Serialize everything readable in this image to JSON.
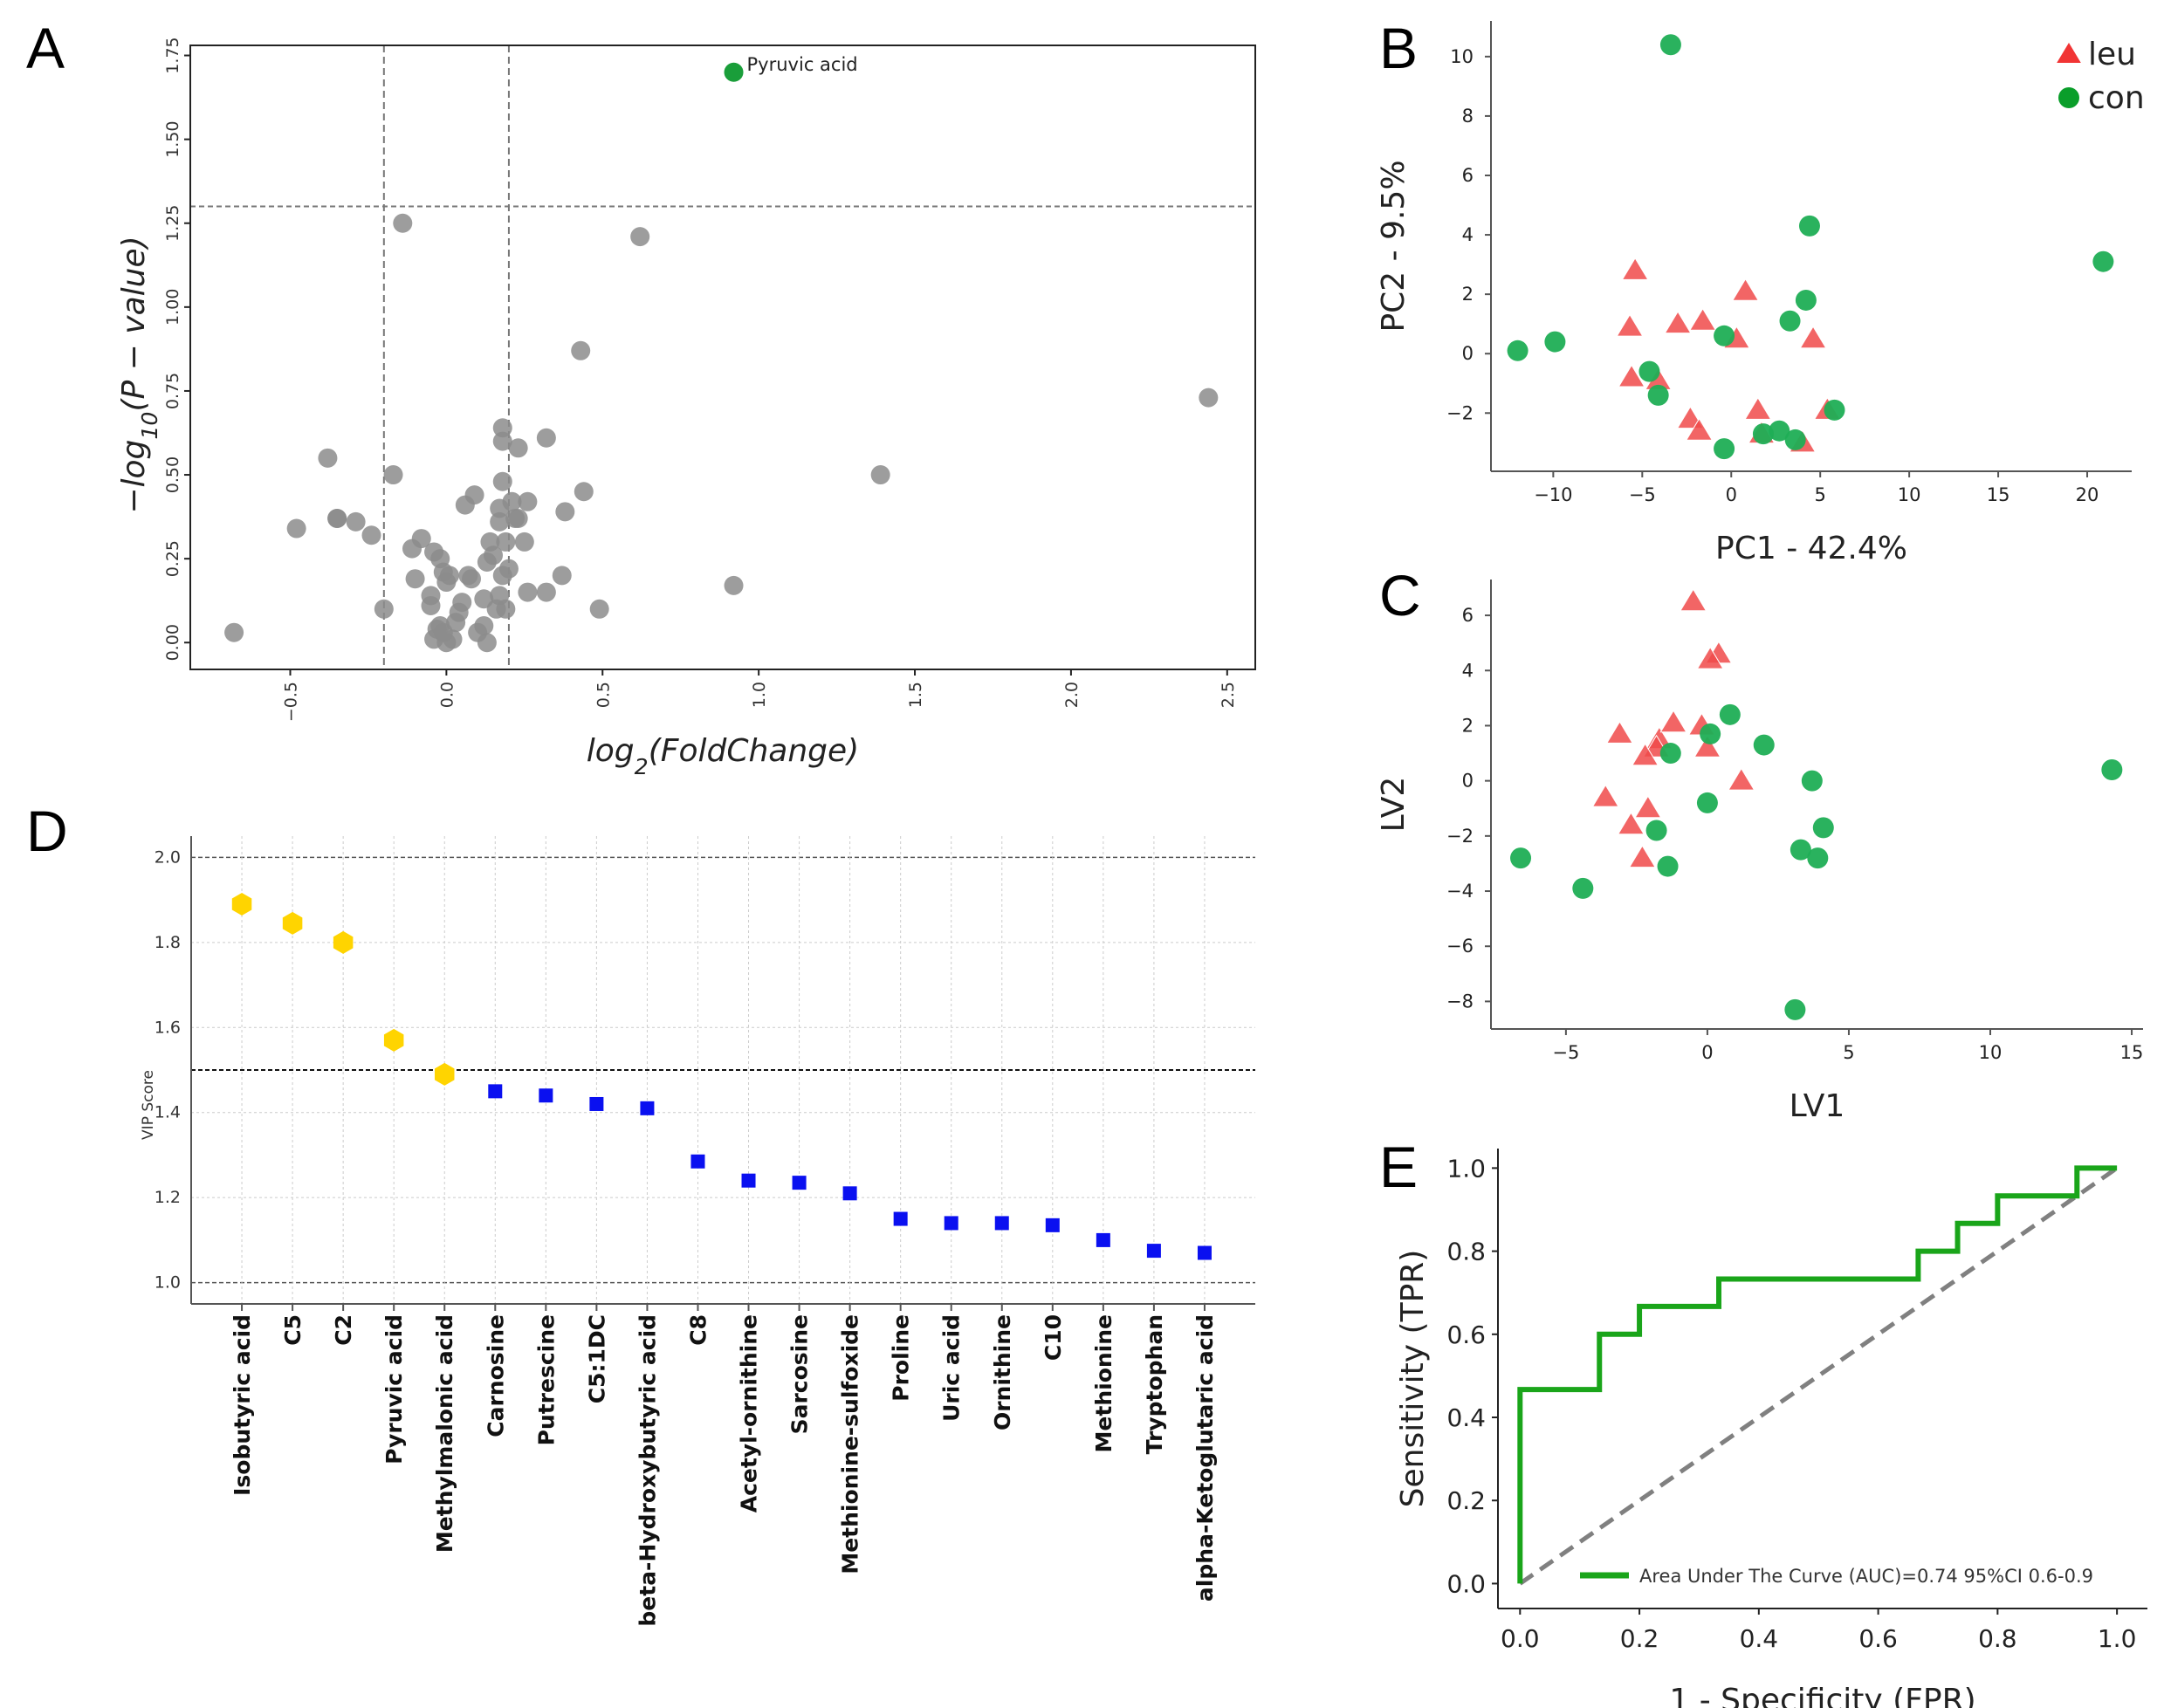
{
  "colors": {
    "gray_point": "#8c8c8c",
    "highlight": "#1a9e3a",
    "leu": "#f04a4a",
    "con": "#1fae55",
    "vip_high": "#ffd400",
    "vip_low": "#0a10f0",
    "roc": "#1aa51a",
    "diagonal": "#808080"
  },
  "chart_data": [
    {
      "panel": "A",
      "type": "scatter",
      "xlabel": {
        "main": "log",
        "sub": "2",
        "rest": "(FoldChange)"
      },
      "ylabel": {
        "main": "−log",
        "sub": "10",
        "rest": "(P − value)"
      },
      "xlim": [
        -0.82,
        2.59
      ],
      "ylim": [
        -0.08,
        1.78
      ],
      "xticks": [
        -0.5,
        0.0,
        0.5,
        1.0,
        1.5,
        2.0,
        2.5
      ],
      "xtick_labels": [
        "−0.5",
        "0.0",
        "0.5",
        "1.0",
        "1.5",
        "2.0",
        "2.5"
      ],
      "yticks": [
        0,
        0.25,
        0.5,
        0.75,
        1.0,
        1.25,
        1.5,
        1.75
      ],
      "ytick_labels": [
        "0.00",
        "0.25",
        "0.50",
        "0.75",
        "1.00",
        "1.25",
        "1.50",
        "1.75"
      ],
      "thresholds": {
        "x": [
          -0.2,
          0.2
        ],
        "y": 1.3
      },
      "points": [
        [
          -0.68,
          0.03
        ],
        [
          -0.48,
          0.34
        ],
        [
          -0.38,
          0.55
        ],
        [
          -0.35,
          0.37
        ],
        [
          -0.35,
          0.37
        ],
        [
          -0.29,
          0.36
        ],
        [
          -0.24,
          0.32
        ],
        [
          -0.2,
          0.1
        ],
        [
          -0.17,
          0.5
        ],
        [
          -0.14,
          1.25
        ],
        [
          0.62,
          1.21
        ],
        [
          0.43,
          0.87
        ],
        [
          2.44,
          0.73
        ],
        [
          1.39,
          0.5
        ],
        [
          0.92,
          0.17
        ],
        [
          0.49,
          0.1
        ],
        [
          0.44,
          0.45
        ],
        [
          0.38,
          0.39
        ],
        [
          0.37,
          0.2
        ],
        [
          0.32,
          0.61
        ],
        [
          0.32,
          0.15
        ],
        [
          0.26,
          0.15
        ],
        [
          0.26,
          0.42
        ],
        [
          0.25,
          0.3
        ],
        [
          0.23,
          0.58
        ],
        [
          0.23,
          0.37
        ],
        [
          0.22,
          0.37
        ],
        [
          0.21,
          0.42
        ],
        [
          0.2,
          0.22
        ],
        [
          0.19,
          0.1
        ],
        [
          0.18,
          0.64
        ],
        [
          0.18,
          0.6
        ],
        [
          0.18,
          0.48
        ],
        [
          0.17,
          0.4
        ],
        [
          0.17,
          0.36
        ],
        [
          0.19,
          0.3
        ],
        [
          0.18,
          0.2
        ],
        [
          0.17,
          0.14
        ],
        [
          0.16,
          0.1
        ],
        [
          0.15,
          0.26
        ],
        [
          0.14,
          0.3
        ],
        [
          0.13,
          0.24
        ],
        [
          0.12,
          0.13
        ],
        [
          0.12,
          0.05
        ],
        [
          0.13,
          0.0
        ],
        [
          0.1,
          0.03
        ],
        [
          0.09,
          0.44
        ],
        [
          0.06,
          0.41
        ],
        [
          0.08,
          0.19
        ],
        [
          0.07,
          0.2
        ],
        [
          0.05,
          0.12
        ],
        [
          0.04,
          0.09
        ],
        [
          0.03,
          0.06
        ],
        [
          0.02,
          0.01
        ],
        [
          0.0,
          0.0
        ],
        [
          -0.01,
          0.03
        ],
        [
          -0.02,
          0.05
        ],
        [
          -0.04,
          0.01
        ],
        [
          -0.03,
          0.04
        ],
        [
          -0.05,
          0.14
        ],
        [
          -0.05,
          0.11
        ],
        [
          -0.01,
          0.21
        ],
        [
          0.01,
          0.2
        ],
        [
          -0.02,
          0.25
        ],
        [
          -0.04,
          0.27
        ],
        [
          -0.08,
          0.31
        ],
        [
          -0.1,
          0.19
        ],
        [
          -0.11,
          0.28
        ],
        [
          0.0,
          0.18
        ]
      ],
      "highlight": {
        "label": "Pyruvic acid",
        "x": 0.92,
        "y": 1.7
      }
    },
    {
      "panel": "B",
      "type": "scatter",
      "xlabel": "PC1 - 42.4%",
      "ylabel": "PC2 - 9.5%",
      "xlim": [
        -13.5,
        22.5
      ],
      "ylim": [
        -3.96,
        11.2
      ],
      "xticks": [
        -10,
        -5,
        0,
        5,
        10,
        15,
        20
      ],
      "xtick_labels": [
        "−10",
        "−5",
        "0",
        "5",
        "10",
        "15",
        "20"
      ],
      "yticks": [
        -2,
        0,
        2,
        4,
        6,
        8,
        10
      ],
      "ytick_labels": [
        "−2",
        "0",
        "2",
        "4",
        "6",
        "8",
        "10"
      ],
      "legend": {
        "position": "top-right",
        "entries": [
          {
            "name": "leu",
            "marker": "triangle"
          },
          {
            "name": "con",
            "marker": "circle"
          }
        ]
      },
      "series": [
        {
          "name": "leu",
          "points": [
            [
              -5.4,
              2.8
            ],
            [
              -5.7,
              0.9
            ],
            [
              -3.0,
              1.0
            ],
            [
              -1.6,
              1.1
            ],
            [
              0.8,
              2.1
            ],
            [
              0.3,
              0.5
            ],
            [
              4.6,
              0.5
            ],
            [
              -5.6,
              -0.8
            ],
            [
              -4.1,
              -0.9
            ],
            [
              -2.3,
              -2.2
            ],
            [
              -1.8,
              -2.6
            ],
            [
              1.5,
              -1.9
            ],
            [
              1.7,
              -2.7
            ],
            [
              5.4,
              -1.9
            ],
            [
              4.0,
              -3.0
            ]
          ]
        },
        {
          "name": "con",
          "points": [
            [
              -12,
              0.1
            ],
            [
              -9.9,
              0.4
            ],
            [
              -3.4,
              10.4
            ],
            [
              4.4,
              4.3
            ],
            [
              20.9,
              3.1
            ],
            [
              4.2,
              1.8
            ],
            [
              3.3,
              1.1
            ],
            [
              -0.4,
              0.6
            ],
            [
              -4.6,
              -0.6
            ],
            [
              -4.1,
              -1.4
            ],
            [
              5.8,
              -1.9
            ],
            [
              2.7,
              -2.6
            ],
            [
              1.8,
              -2.7
            ],
            [
              3.6,
              -2.9
            ],
            [
              -0.4,
              -3.2
            ]
          ]
        }
      ]
    },
    {
      "panel": "C",
      "type": "scatter",
      "xlabel": "LV1",
      "ylabel": "LV2",
      "xlim": [
        -7.65,
        15.4
      ],
      "ylim": [
        -9.0,
        7.3
      ],
      "xticks": [
        -5,
        0,
        5,
        10,
        15
      ],
      "xtick_labels": [
        "−5",
        "0",
        "5",
        "10",
        "15"
      ],
      "yticks": [
        -8,
        -6,
        -4,
        -2,
        0,
        2,
        4,
        6
      ],
      "ytick_labels": [
        "−8",
        "−6",
        "−4",
        "−2",
        "0",
        "2",
        "4",
        "6"
      ],
      "series": [
        {
          "name": "leu",
          "points": [
            [
              -0.5,
              6.5
            ],
            [
              0.4,
              4.6
            ],
            [
              0.1,
              4.4
            ],
            [
              -3.1,
              1.7
            ],
            [
              -1.7,
              1.5
            ],
            [
              -1.2,
              2.1
            ],
            [
              -1.8,
              1.2
            ],
            [
              -2.2,
              0.9
            ],
            [
              -0.2,
              2.0
            ],
            [
              0,
              1.2
            ],
            [
              1.2,
              0
            ],
            [
              -3.6,
              -0.6
            ],
            [
              -2.1,
              -1.0
            ],
            [
              -2.7,
              -1.6
            ],
            [
              -2.3,
              -2.8
            ]
          ]
        },
        {
          "name": "con",
          "points": [
            [
              0.8,
              2.4
            ],
            [
              0.1,
              1.7
            ],
            [
              -1.3,
              1.0
            ],
            [
              2.0,
              1.3
            ],
            [
              3.7,
              0
            ],
            [
              14.3,
              0.4
            ],
            [
              0,
              -0.8
            ],
            [
              -1.8,
              -1.8
            ],
            [
              4.1,
              -1.7
            ],
            [
              3.3,
              -2.5
            ],
            [
              3.9,
              -2.8
            ],
            [
              -1.4,
              -3.1
            ],
            [
              -6.6,
              -2.8
            ],
            [
              -4.4,
              -3.9
            ],
            [
              3.1,
              -8.3
            ]
          ]
        }
      ]
    },
    {
      "panel": "D",
      "type": "scatter",
      "ylabel": "VIP Score",
      "ylim": [
        0.95,
        2.05
      ],
      "yticks": [
        1.0,
        1.2,
        1.4,
        1.6,
        1.8,
        2.0
      ],
      "ytick_labels": [
        "1.0",
        "1.2",
        "1.4",
        "1.6",
        "1.8",
        "2.0"
      ],
      "threshold": 1.5,
      "categories": [
        "Isobutyric acid",
        "C5",
        "C2",
        "Pyruvic acid",
        "Methylmalonic acid",
        "Carnosine",
        "Putrescine",
        "C5:1DC",
        "beta-Hydroxybutyric acid",
        "C8",
        "Acetyl-ornithine",
        "Sarcosine",
        "Methionine-sulfoxide",
        "Proline",
        "Uric acid",
        "Ornithine",
        "C10",
        "Methionine",
        "Tryptophan",
        "alpha-Ketoglutaric acid"
      ],
      "values": [
        1.89,
        1.845,
        1.8,
        1.57,
        1.49,
        1.45,
        1.44,
        1.42,
        1.41,
        1.285,
        1.24,
        1.235,
        1.21,
        1.15,
        1.14,
        1.14,
        1.135,
        1.1,
        1.075,
        1.07
      ]
    },
    {
      "panel": "E",
      "type": "line",
      "xlabel": "1 - Specificity (FPR)",
      "ylabel": "Sensitivity (TPR)",
      "xlim": [
        -0.037,
        1.051
      ],
      "ylim": [
        -0.06,
        1.047
      ],
      "xticks": [
        0,
        0.2,
        0.4,
        0.6,
        0.8,
        1.0
      ],
      "xtick_labels": [
        "0.0",
        "0.2",
        "0.4",
        "0.6",
        "0.8",
        "1.0"
      ],
      "yticks": [
        0,
        0.2,
        0.4,
        0.6,
        0.8,
        1.0
      ],
      "ytick_labels": [
        "0.0",
        "0.2",
        "0.4",
        "0.6",
        "0.8",
        "1.0"
      ],
      "legend": {
        "position": "bottom-right",
        "label": "Area Under The Curve (AUC)=0.74 95%CI 0.6-0.9"
      },
      "roc": [
        [
          0,
          0
        ],
        [
          0,
          0.467
        ],
        [
          0.133,
          0.467
        ],
        [
          0.133,
          0.6
        ],
        [
          0.2,
          0.6
        ],
        [
          0.2,
          0.667
        ],
        [
          0.333,
          0.667
        ],
        [
          0.333,
          0.733
        ],
        [
          0.667,
          0.733
        ],
        [
          0.667,
          0.8
        ],
        [
          0.733,
          0.8
        ],
        [
          0.733,
          0.867
        ],
        [
          0.8,
          0.867
        ],
        [
          0.8,
          0.933
        ],
        [
          0.933,
          0.933
        ],
        [
          0.933,
          1.0
        ],
        [
          1.0,
          1.0
        ]
      ],
      "diagonal": [
        [
          0,
          0
        ],
        [
          1,
          1
        ]
      ]
    }
  ],
  "panel_letters": [
    "A",
    "B",
    "C",
    "D",
    "E"
  ]
}
